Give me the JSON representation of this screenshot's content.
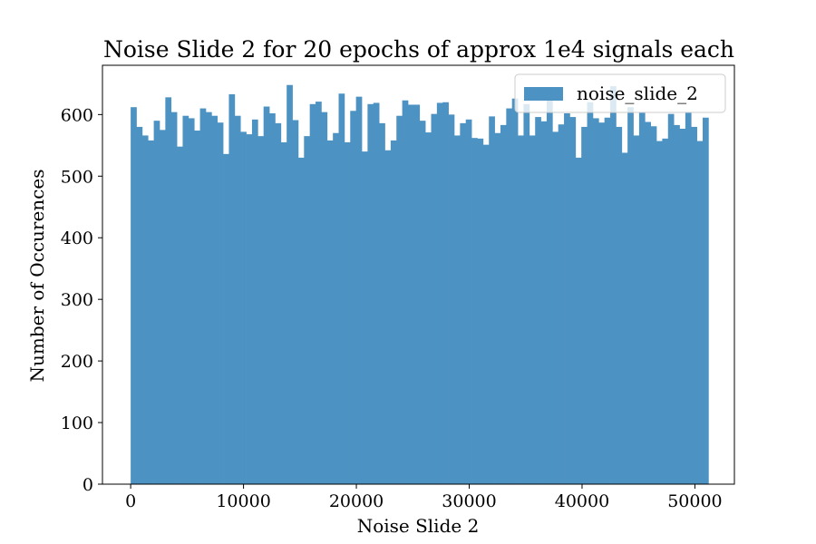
{
  "chart_data": {
    "type": "bar",
    "title": "Noise Slide 2 for 20 epochs of approx 1e4 signals each",
    "xlabel": "Noise Slide 2",
    "ylabel": "Number of Occurences",
    "xlim": [
      -2500,
      53500
    ],
    "ylim": [
      0,
      680
    ],
    "xticks": [
      0,
      10000,
      20000,
      30000,
      40000,
      50000
    ],
    "yticks": [
      0,
      100,
      200,
      300,
      400,
      500,
      600
    ],
    "bar_color": "#4c92c3",
    "legend": {
      "placement": "top-right",
      "entries": [
        "noise_slide_2"
      ]
    },
    "grid": false,
    "series": [
      {
        "name": "noise_slide_2",
        "bin_start": 0,
        "bin_width": 512,
        "values": [
          612,
          580,
          566,
          558,
          590,
          575,
          628,
          604,
          548,
          598,
          594,
          574,
          610,
          604,
          598,
          587,
          536,
          633,
          598,
          572,
          568,
          592,
          565,
          613,
          602,
          586,
          555,
          648,
          591,
          530,
          565,
          617,
          621,
          604,
          558,
          570,
          634,
          555,
          606,
          629,
          540,
          617,
          619,
          586,
          542,
          558,
          598,
          623,
          616,
          616,
          590,
          571,
          601,
          619,
          620,
          600,
          566,
          586,
          592,
          562,
          561,
          551,
          597,
          570,
          583,
          610,
          626,
          566,
          617,
          566,
          596,
          589,
          636,
          572,
          584,
          602,
          596,
          530,
          580,
          620,
          594,
          587,
          595,
          646,
          580,
          538,
          612,
          566,
          604,
          588,
          581,
          557,
          561,
          601,
          583,
          577,
          604,
          580,
          557,
          595
        ]
      }
    ]
  }
}
